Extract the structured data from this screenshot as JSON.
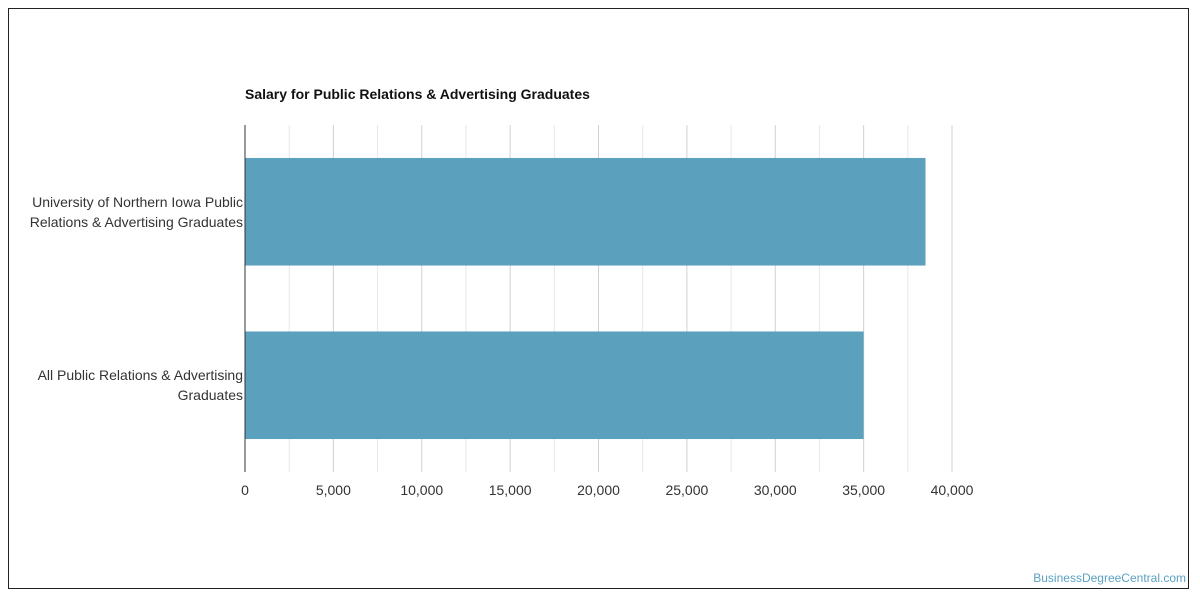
{
  "chart_data": {
    "type": "bar",
    "orientation": "horizontal",
    "title": "Salary for Public Relations & Advertising Graduates",
    "categories": [
      "University of Northern Iowa Public Relations & Advertising Graduates",
      "All Public Relations & Advertising Graduates"
    ],
    "values": [
      38500,
      35000
    ],
    "xlim": [
      0,
      40000
    ],
    "xticks": [
      0,
      5000,
      10000,
      15000,
      20000,
      25000,
      30000,
      35000,
      40000
    ],
    "xtick_labels": [
      "0",
      "5,000",
      "10,000",
      "15,000",
      "20,000",
      "25,000",
      "30,000",
      "35,000",
      "40,000"
    ],
    "grid": true,
    "bar_color": "#5ba1bd"
  },
  "source": "BusinessDegreeCentral.com"
}
